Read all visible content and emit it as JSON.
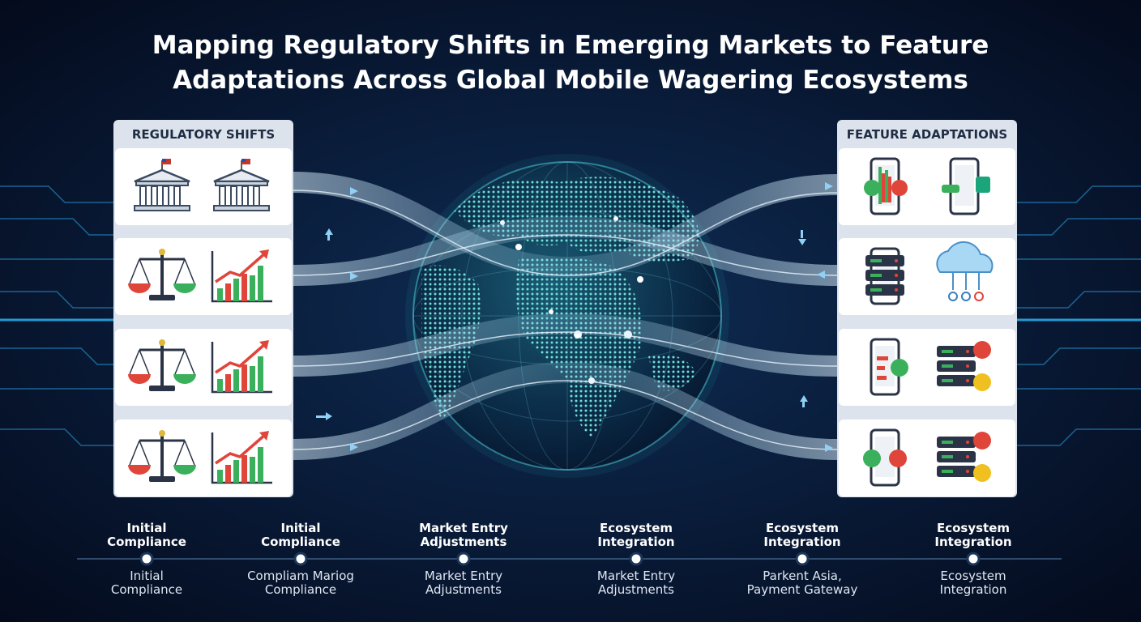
{
  "title": {
    "lines": [
      "Mapping Regulatory Shifts in Emerging Markets to Feature",
      "Adaptations Across Global Mobile Wagering Ecosystems"
    ]
  },
  "left_panel": {
    "header": "REGULATORY SHIFTS"
  },
  "right_panel": {
    "header": "FEATURE ADAPTATIONS"
  },
  "timeline": [
    {
      "top": [
        "Initial",
        "Compliance"
      ],
      "bottom": [
        "Initial",
        "Compliance"
      ]
    },
    {
      "top": [
        "Initial",
        "Compliance"
      ],
      "bottom": [
        "Compliam Mariog",
        "Compliance"
      ]
    },
    {
      "top": [
        "Market Entry",
        "Adjustments"
      ],
      "bottom": [
        "Market Entry",
        "Adjustments"
      ]
    },
    {
      "top": [
        "Ecosystem",
        "Integration"
      ],
      "bottom": [
        "Market Entry",
        "Adjustments"
      ]
    },
    {
      "top": [
        "Ecosystem",
        "Integration"
      ],
      "bottom": [
        "Parkent Asia,",
        "Payment Gateway"
      ]
    },
    {
      "top": [
        "Ecosystem",
        "Integration"
      ],
      "bottom": [
        "Ecosystem",
        "Integration"
      ]
    }
  ]
}
